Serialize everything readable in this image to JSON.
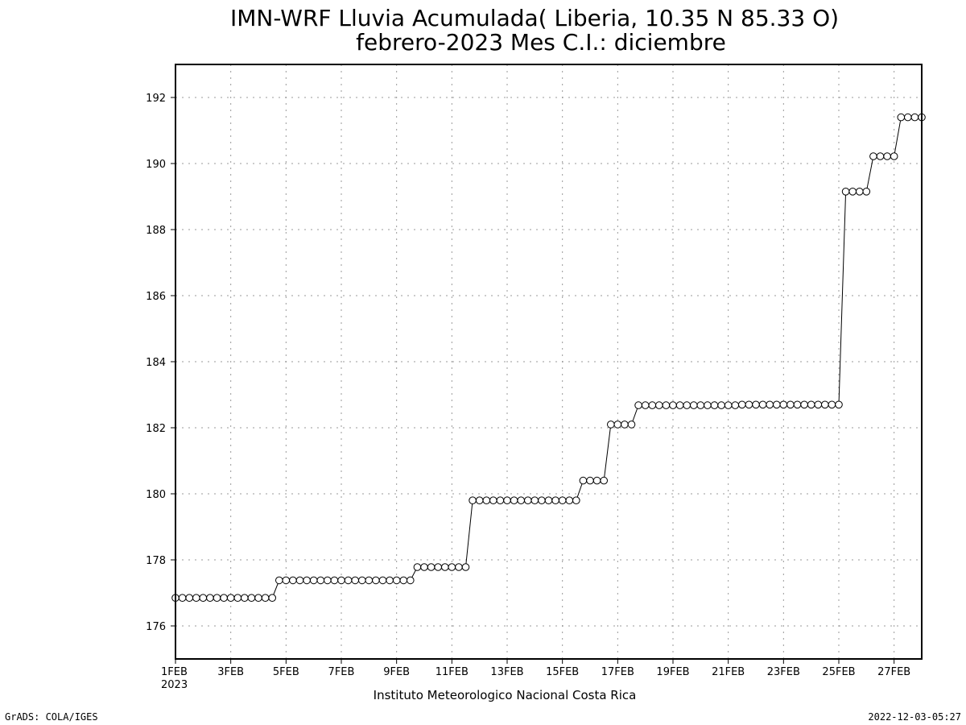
{
  "chart_data": {
    "type": "line",
    "title": "IMN-WRF  Lluvia Acumulada( Liberia, 10.35  N 85.33  O)",
    "subtitle": "febrero-2023 Mes C.I.: diciembre",
    "xlabel": "",
    "ylabel": "",
    "ylim": [
      175,
      193
    ],
    "xlim": [
      "2023-02-01T00:00",
      "2023-02-28T00:00"
    ],
    "grid": true,
    "marker": "open-circle",
    "line_color": "#000000",
    "x_ticks": [
      {
        "label": "1FEB",
        "sub": "2023",
        "date": "2023-02-01"
      },
      {
        "label": "3FEB",
        "date": "2023-02-03"
      },
      {
        "label": "5FEB",
        "date": "2023-02-05"
      },
      {
        "label": "7FEB",
        "date": "2023-02-07"
      },
      {
        "label": "9FEB",
        "date": "2023-02-09"
      },
      {
        "label": "11FEB",
        "date": "2023-02-11"
      },
      {
        "label": "13FEB",
        "date": "2023-02-13"
      },
      {
        "label": "15FEB",
        "date": "2023-02-15"
      },
      {
        "label": "17FEB",
        "date": "2023-02-17"
      },
      {
        "label": "19FEB",
        "date": "2023-02-19"
      },
      {
        "label": "21FEB",
        "date": "2023-02-21"
      },
      {
        "label": "23FEB",
        "date": "2023-02-23"
      },
      {
        "label": "25FEB",
        "date": "2023-02-25"
      },
      {
        "label": "27FEB",
        "date": "2023-02-27"
      }
    ],
    "y_ticks": [
      176,
      178,
      180,
      182,
      184,
      186,
      188,
      190,
      192
    ],
    "series": [
      {
        "x": [
          "2023-02-01T00:00",
          "2023-02-01T06:00",
          "2023-02-01T12:00",
          "2023-02-01T18:00",
          "2023-02-02T00:00",
          "2023-02-02T06:00",
          "2023-02-02T12:00",
          "2023-02-02T18:00",
          "2023-02-03T00:00",
          "2023-02-03T06:00",
          "2023-02-03T12:00",
          "2023-02-03T18:00",
          "2023-02-04T00:00",
          "2023-02-04T06:00",
          "2023-02-04T12:00",
          "2023-02-04T18:00",
          "2023-02-05T00:00",
          "2023-02-05T06:00",
          "2023-02-05T12:00",
          "2023-02-05T18:00",
          "2023-02-06T00:00",
          "2023-02-06T06:00",
          "2023-02-06T12:00",
          "2023-02-06T18:00",
          "2023-02-07T00:00",
          "2023-02-07T06:00",
          "2023-02-07T12:00",
          "2023-02-07T18:00",
          "2023-02-08T00:00",
          "2023-02-08T06:00",
          "2023-02-08T12:00",
          "2023-02-08T18:00",
          "2023-02-09T00:00",
          "2023-02-09T06:00",
          "2023-02-09T12:00",
          "2023-02-09T18:00",
          "2023-02-10T00:00",
          "2023-02-10T06:00",
          "2023-02-10T12:00",
          "2023-02-10T18:00",
          "2023-02-11T00:00",
          "2023-02-11T06:00",
          "2023-02-11T12:00",
          "2023-02-11T18:00",
          "2023-02-12T00:00",
          "2023-02-12T06:00",
          "2023-02-12T12:00",
          "2023-02-12T18:00",
          "2023-02-13T00:00",
          "2023-02-13T06:00",
          "2023-02-13T12:00",
          "2023-02-13T18:00",
          "2023-02-14T00:00",
          "2023-02-14T06:00",
          "2023-02-14T12:00",
          "2023-02-14T18:00",
          "2023-02-15T00:00",
          "2023-02-15T06:00",
          "2023-02-15T12:00",
          "2023-02-15T18:00",
          "2023-02-16T00:00",
          "2023-02-16T06:00",
          "2023-02-16T12:00",
          "2023-02-16T18:00",
          "2023-02-17T00:00",
          "2023-02-17T06:00",
          "2023-02-17T12:00",
          "2023-02-17T18:00",
          "2023-02-18T00:00",
          "2023-02-18T06:00",
          "2023-02-18T12:00",
          "2023-02-18T18:00",
          "2023-02-19T00:00",
          "2023-02-19T06:00",
          "2023-02-19T12:00",
          "2023-02-19T18:00",
          "2023-02-20T00:00",
          "2023-02-20T06:00",
          "2023-02-20T12:00",
          "2023-02-20T18:00",
          "2023-02-21T00:00",
          "2023-02-21T06:00",
          "2023-02-21T12:00",
          "2023-02-21T18:00",
          "2023-02-22T00:00",
          "2023-02-22T06:00",
          "2023-02-22T12:00",
          "2023-02-22T18:00",
          "2023-02-23T00:00",
          "2023-02-23T06:00",
          "2023-02-23T12:00",
          "2023-02-23T18:00",
          "2023-02-24T00:00",
          "2023-02-24T06:00",
          "2023-02-24T12:00",
          "2023-02-24T18:00",
          "2023-02-25T00:00",
          "2023-02-25T06:00",
          "2023-02-25T12:00",
          "2023-02-25T18:00",
          "2023-02-26T00:00",
          "2023-02-26T06:00",
          "2023-02-26T12:00",
          "2023-02-26T18:00",
          "2023-02-27T00:00",
          "2023-02-27T06:00",
          "2023-02-27T12:00",
          "2023-02-27T18:00",
          "2023-02-28T00:00"
        ],
        "values": [
          176.85,
          176.85,
          176.85,
          176.85,
          176.85,
          176.85,
          176.85,
          176.85,
          176.85,
          176.85,
          176.85,
          176.85,
          176.85,
          176.85,
          176.85,
          177.38,
          177.38,
          177.38,
          177.38,
          177.38,
          177.38,
          177.38,
          177.38,
          177.38,
          177.38,
          177.38,
          177.38,
          177.38,
          177.38,
          177.38,
          177.38,
          177.38,
          177.38,
          177.38,
          177.38,
          177.78,
          177.78,
          177.78,
          177.78,
          177.78,
          177.78,
          177.78,
          177.78,
          179.8,
          179.8,
          179.8,
          179.8,
          179.8,
          179.8,
          179.8,
          179.8,
          179.8,
          179.8,
          179.8,
          179.8,
          179.8,
          179.8,
          179.8,
          179.8,
          180.4,
          180.4,
          180.4,
          180.4,
          182.1,
          182.1,
          182.1,
          182.1,
          182.68,
          182.68,
          182.68,
          182.68,
          182.68,
          182.68,
          182.68,
          182.68,
          182.68,
          182.68,
          182.68,
          182.68,
          182.68,
          182.68,
          182.68,
          182.7,
          182.7,
          182.7,
          182.7,
          182.7,
          182.7,
          182.7,
          182.7,
          182.7,
          182.7,
          182.7,
          182.7,
          182.7,
          182.7,
          182.7,
          189.15,
          189.15,
          189.15,
          189.15,
          190.22,
          190.22,
          190.22,
          190.22,
          191.4,
          191.4,
          191.4,
          191.4
        ]
      }
    ]
  },
  "footer": {
    "credit": "Instituto Meteorologico Nacional Costa Rica",
    "left": "GrADS: COLA/IGES",
    "right": "2022-12-03-05:27"
  }
}
